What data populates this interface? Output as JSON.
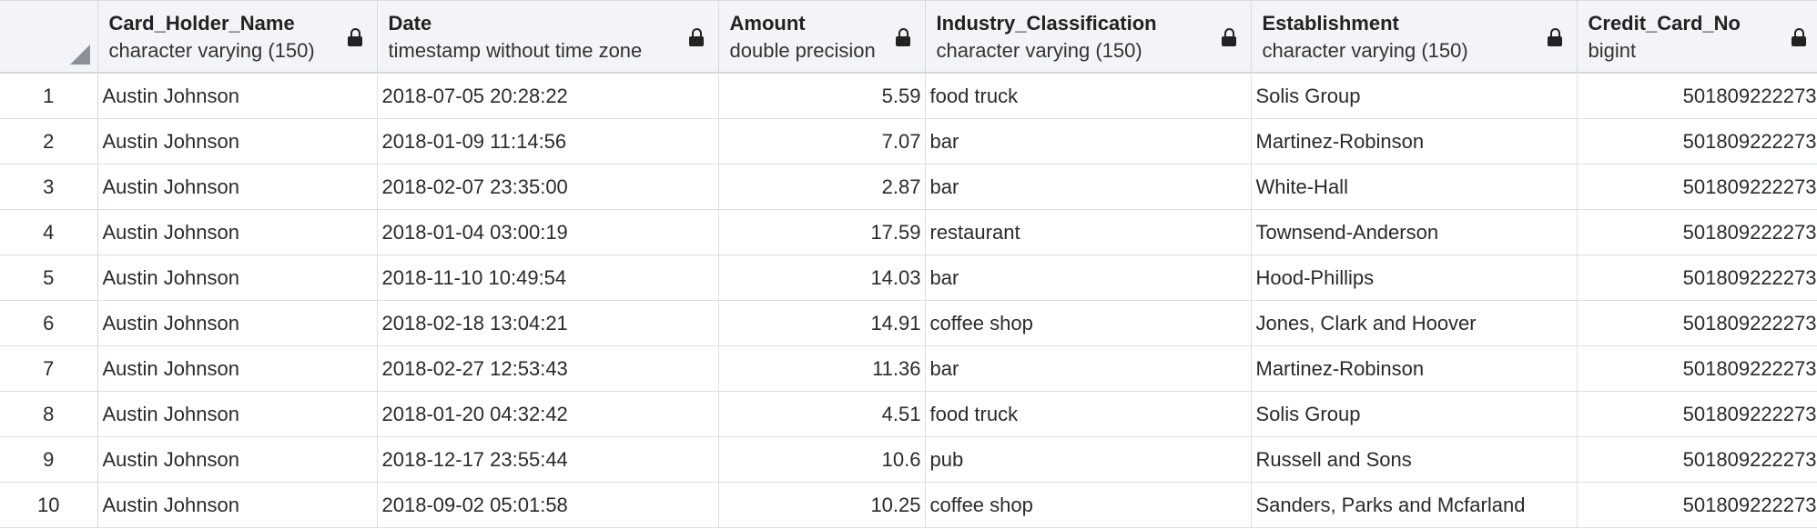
{
  "columns": [
    {
      "name": "Card_Holder_Name",
      "type": "character varying (150)"
    },
    {
      "name": "Date",
      "type": "timestamp without time zone"
    },
    {
      "name": "Amount",
      "type": "double precision"
    },
    {
      "name": "Industry_Classification",
      "type": "character varying (150)"
    },
    {
      "name": "Establishment",
      "type": "character varying (150)"
    },
    {
      "name": "Credit_Card_No",
      "type": "bigint"
    }
  ],
  "rows": [
    {
      "index": "1",
      "name": "Austin Johnson",
      "date": "2018-07-05 20:28:22",
      "amount": "5.59",
      "industry": "food truck",
      "establishment": "Solis Group",
      "card": "501809222273"
    },
    {
      "index": "2",
      "name": "Austin Johnson",
      "date": "2018-01-09 11:14:56",
      "amount": "7.07",
      "industry": "bar",
      "establishment": "Martinez-Robinson",
      "card": "501809222273"
    },
    {
      "index": "3",
      "name": "Austin Johnson",
      "date": "2018-02-07 23:35:00",
      "amount": "2.87",
      "industry": "bar",
      "establishment": "White-Hall",
      "card": "501809222273"
    },
    {
      "index": "4",
      "name": "Austin Johnson",
      "date": "2018-01-04 03:00:19",
      "amount": "17.59",
      "industry": "restaurant",
      "establishment": "Townsend-Anderson",
      "card": "501809222273"
    },
    {
      "index": "5",
      "name": "Austin Johnson",
      "date": "2018-11-10 10:49:54",
      "amount": "14.03",
      "industry": "bar",
      "establishment": "Hood-Phillips",
      "card": "501809222273"
    },
    {
      "index": "6",
      "name": "Austin Johnson",
      "date": "2018-02-18 13:04:21",
      "amount": "14.91",
      "industry": "coffee shop",
      "establishment": "Jones, Clark and Hoover",
      "card": "501809222273"
    },
    {
      "index": "7",
      "name": "Austin Johnson",
      "date": "2018-02-27 12:53:43",
      "amount": "11.36",
      "industry": "bar",
      "establishment": "Martinez-Robinson",
      "card": "501809222273"
    },
    {
      "index": "8",
      "name": "Austin Johnson",
      "date": "2018-01-20 04:32:42",
      "amount": "4.51",
      "industry": "food truck",
      "establishment": "Solis Group",
      "card": "501809222273"
    },
    {
      "index": "9",
      "name": "Austin Johnson",
      "date": "2018-12-17 23:55:44",
      "amount": "10.6",
      "industry": "pub",
      "establishment": "Russell and Sons",
      "card": "501809222273"
    },
    {
      "index": "10",
      "name": "Austin Johnson",
      "date": "2018-09-02 05:01:58",
      "amount": "10.25",
      "industry": "coffee shop",
      "establishment": "Sanders, Parks and Mcfarland",
      "card": "501809222273"
    }
  ],
  "icons": {
    "column_lock": "lock-icon",
    "select_all": "corner-triangle-icon"
  }
}
